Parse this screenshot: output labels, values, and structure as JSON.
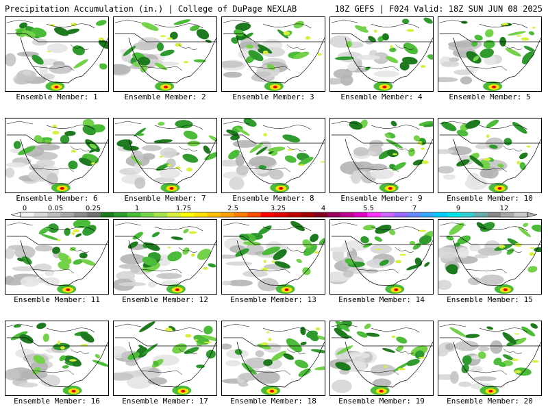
{
  "header": {
    "title": "Precipitation Accumulation (in.) | College of DuPage NEXLAB",
    "run_info": "18Z GEFS | F024 Valid: 18Z SUN JUN 08 2025"
  },
  "members": [
    "Ensemble Member: 1",
    "Ensemble Member: 2",
    "Ensemble Member: 3",
    "Ensemble Member: 4",
    "Ensemble Member: 5",
    "Ensemble Member: 6",
    "Ensemble Member: 7",
    "Ensemble Member: 8",
    "Ensemble Member: 9",
    "Ensemble Member: 10",
    "Ensemble Member: 11",
    "Ensemble Member: 12",
    "Ensemble Member: 13",
    "Ensemble Member: 14",
    "Ensemble Member: 15",
    "Ensemble Member: 16",
    "Ensemble Member: 17",
    "Ensemble Member: 18",
    "Ensemble Member: 19",
    "Ensemble Member: 20"
  ],
  "colorbar": {
    "labels": [
      "0",
      "0.05",
      "0.25",
      "1",
      "1.75",
      "2.5",
      "3.25",
      "4",
      "5.5",
      "7",
      "9",
      "12"
    ],
    "colors": [
      "#f2f2f2",
      "#d9d9d9",
      "#bfbfbf",
      "#a6a6a6",
      "#8c8c8c",
      "#707070",
      "#1e7a1e",
      "#2f9b2f",
      "#4cbb3a",
      "#74d14a",
      "#a7e24d",
      "#d8f03c",
      "#ffff00",
      "#ffe000",
      "#ffc000",
      "#ffa000",
      "#ff7a00",
      "#ff4a00",
      "#ff0000",
      "#e00000",
      "#c00000",
      "#a00000",
      "#800020",
      "#9c0060",
      "#c00090",
      "#e000c0",
      "#ff33ff",
      "#cc66ff",
      "#9966ff",
      "#6688ff",
      "#33aaff",
      "#00ccff",
      "#00e5e5",
      "#33cccc",
      "#66aaaa",
      "#888888",
      "#a8a8a8",
      "#c8c8c8"
    ]
  }
}
